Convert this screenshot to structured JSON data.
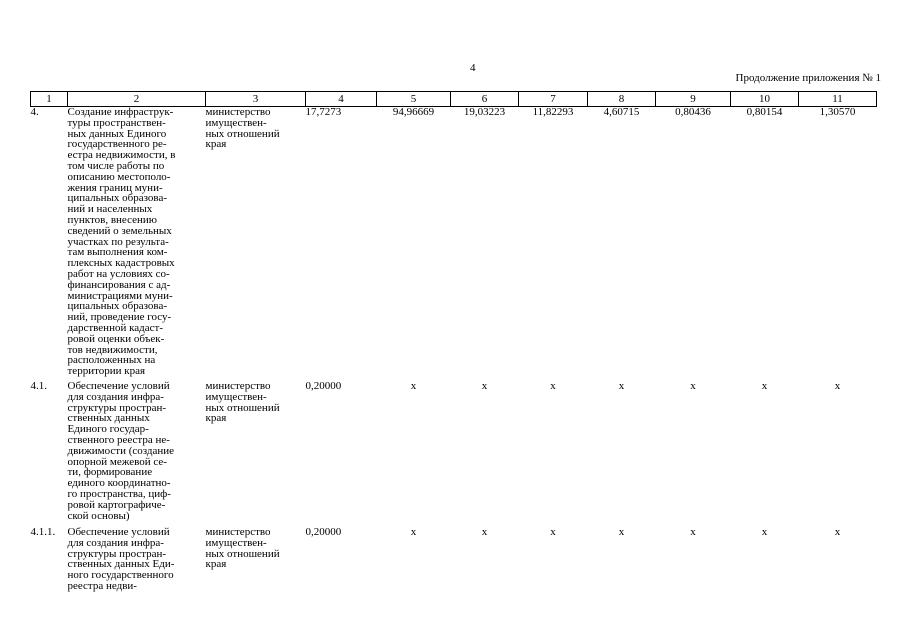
{
  "page_number": "4",
  "continuation": "Продолжение приложения № 1",
  "column_headers": [
    "1",
    "2",
    "3",
    "4",
    "5",
    "6",
    "7",
    "8",
    "9",
    "10",
    "11"
  ],
  "rows": [
    {
      "num": "4.",
      "name_lines": [
        "Создание инфраструк-",
        "туры пространствен-",
        "ных данных Единого",
        "государственного ре-",
        "естра недвижимости, в",
        "том числе работы по",
        "описанию местополо-",
        "жения границ муни-",
        "ципальных образова-",
        "ний и населенных",
        "пунктов, внесению",
        "сведений о земельных",
        "участках по результа-",
        "там выполнения ком-",
        "плексных кадастровых",
        "работ на условиях со-",
        "финансирования с ад-",
        "министрациями муни-",
        "ципальных образова-",
        "ний, проведение госу-",
        "дарственной кадаст-",
        "ровой оценки объек-",
        "тов недвижимости,",
        "расположенных на",
        "территории края"
      ],
      "resp_lines": [
        "министерство",
        "имуществен-",
        "ных отношений",
        "края"
      ],
      "values": [
        "17,7273",
        "94,96669",
        "19,03223",
        "11,82293",
        "4,60715",
        "0,80436",
        "0,80154",
        "1,30570"
      ]
    },
    {
      "num": "4.1.",
      "name_lines": [
        "Обеспечение условий",
        "для создания инфра-",
        "структуры простран-",
        "ственных данных",
        "Единого государ-",
        "ственного реестра не-",
        "движимости (создание",
        "опорной межевой се-",
        "ти, формирование",
        "единого координатно-",
        "го пространства, циф-",
        "ровой картографиче-",
        "ской основы)"
      ],
      "resp_lines": [
        "министерство",
        "имуществен-",
        "ных отношений",
        "края"
      ],
      "values": [
        "0,20000",
        "х",
        "х",
        "х",
        "х",
        "х",
        "х",
        "х"
      ]
    },
    {
      "num": "4.1.1.",
      "name_lines": [
        "Обеспечение условий",
        "для создания инфра-",
        "структуры простран-",
        "ственных данных Еди-",
        "ного государственного",
        "реестра недви-"
      ],
      "resp_lines": [
        "министерство",
        "имуществен-",
        "ных отношений",
        "края"
      ],
      "values": [
        "0,20000",
        "х",
        "х",
        "х",
        "х",
        "х",
        "х",
        "х"
      ]
    }
  ]
}
